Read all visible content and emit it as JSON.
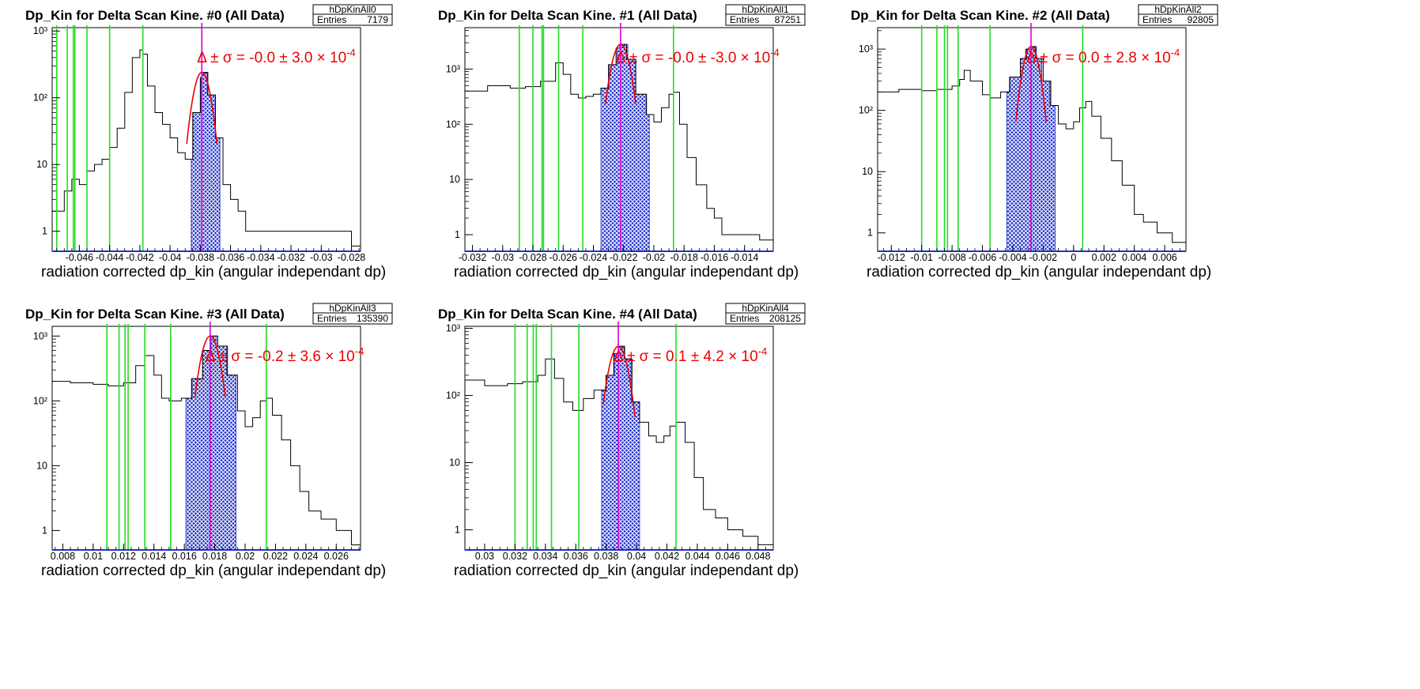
{
  "chart_data": [
    {
      "type": "line",
      "title": "Dp_Kin for Delta Scan Kine. #0 (All Data)",
      "xlabel": "radiation corrected dp_kin (angular independant dp)",
      "ylabel": "",
      "xlim": [
        -0.0478,
        -0.0274
      ],
      "ylog": true,
      "ylim_decades": [
        -0.3,
        3.05
      ],
      "xticks": [
        "-0.046",
        "-0.044",
        "-0.042",
        "-0.04",
        "-0.038",
        "-0.036",
        "-0.034",
        "-0.032",
        "-0.03",
        "-0.028"
      ],
      "yticks": [
        "1",
        "10",
        "10²",
        "10³"
      ],
      "stats": {
        "name": "hDpKinAll0",
        "entries_label": "Entries",
        "entries": "7179"
      },
      "annotation": {
        "lhs": "Δ ± σ = ",
        "value": "-0.0 ± 3.0 × 10",
        "exp": "-4"
      },
      "peak_x": -0.0379,
      "sigma": 0.00045,
      "fit_range": [
        -0.0389,
        -0.0369
      ],
      "fill_range": [
        -0.0386,
        -0.0367
      ],
      "green_lines": [
        -0.0475,
        -0.0468,
        -0.0464,
        -0.0463,
        -0.0455,
        -0.044,
        -0.0418
      ],
      "histogram": {
        "x": [
          -0.0478,
          -0.047,
          -0.0465,
          -0.046,
          -0.0455,
          -0.045,
          -0.0445,
          -0.044,
          -0.0435,
          -0.043,
          -0.0425,
          -0.042,
          -0.0418,
          -0.0415,
          -0.041,
          -0.0405,
          -0.04,
          -0.0395,
          -0.039,
          -0.0385,
          -0.038,
          -0.0379,
          -0.0375,
          -0.037,
          -0.0365,
          -0.036,
          -0.0355,
          -0.035,
          -0.034,
          -0.033,
          -0.032,
          -0.031,
          -0.03,
          -0.029,
          -0.028,
          -0.0274
        ],
        "y": [
          2,
          4,
          6,
          5,
          8,
          10,
          12,
          18,
          35,
          120,
          400,
          520,
          450,
          150,
          60,
          40,
          25,
          15,
          12,
          60,
          200,
          240,
          110,
          25,
          5,
          3,
          2,
          1,
          1,
          1,
          1,
          1,
          1,
          1,
          0.6,
          0.5
        ]
      }
    },
    {
      "type": "line",
      "title": "Dp_Kin for Delta Scan Kine. #1 (All Data)",
      "xlabel": "radiation corrected dp_kin (angular independant dp)",
      "ylabel": "",
      "xlim": [
        -0.0325,
        -0.0121
      ],
      "ylog": true,
      "ylim_decades": [
        -0.3,
        3.75
      ],
      "xticks": [
        "-0.032",
        "-0.03",
        "-0.028",
        "-0.026",
        "-0.024",
        "-0.022",
        "-0.02",
        "-0.018",
        "-0.016",
        "-0.014"
      ],
      "yticks": [
        "1",
        "10",
        "10²",
        "10³"
      ],
      "stats": {
        "name": "hDpKinAll1",
        "entries_label": "Entries",
        "entries": "87251"
      },
      "annotation": {
        "lhs": "Δ ± σ = ",
        "value": "-0.0 ± -3.0 × 10",
        "exp": "-4"
      },
      "peak_x": -0.0222,
      "sigma": 0.00045,
      "fit_range": [
        -0.0232,
        -0.0212
      ],
      "fill_range": [
        -0.0235,
        -0.0203
      ],
      "green_lines": [
        -0.0289,
        -0.028,
        -0.0274,
        -0.0273,
        -0.0263,
        -0.0247,
        -0.0187
      ],
      "histogram": {
        "x": [
          -0.0325,
          -0.031,
          -0.0295,
          -0.0285,
          -0.0275,
          -0.0265,
          -0.026,
          -0.0255,
          -0.025,
          -0.0245,
          -0.024,
          -0.0235,
          -0.023,
          -0.0225,
          -0.0222,
          -0.0218,
          -0.0212,
          -0.0205,
          -0.02,
          -0.0195,
          -0.019,
          -0.0187,
          -0.0183,
          -0.0178,
          -0.0172,
          -0.0165,
          -0.016,
          -0.0155,
          -0.015,
          -0.014,
          -0.013,
          -0.0121
        ],
        "y": [
          400,
          500,
          450,
          480,
          600,
          1300,
          800,
          350,
          300,
          320,
          350,
          450,
          1200,
          2400,
          2800,
          1500,
          350,
          150,
          110,
          200,
          350,
          380,
          100,
          25,
          8,
          3,
          2,
          1,
          1,
          1,
          0.8,
          0.6
        ]
      }
    },
    {
      "type": "line",
      "title": "Dp_Kin for Delta Scan Kine. #2 (All Data)",
      "xlabel": "radiation corrected dp_kin (angular independant dp)",
      "ylabel": "",
      "xlim": [
        -0.0129,
        0.0074
      ],
      "ylog": true,
      "ylim_decades": [
        -0.3,
        3.35
      ],
      "xticks": [
        "-0.012",
        "-0.01",
        "-0.008",
        "-0.006",
        "-0.004",
        "-0.002",
        "0",
        "0.002",
        "0.004",
        "0.006"
      ],
      "yticks": [
        "1",
        "10",
        "10²",
        "10³"
      ],
      "stats": {
        "name": "hDpKinAll2",
        "entries_label": "Entries",
        "entries": "92805"
      },
      "annotation": {
        "lhs": "Δ ± σ = ",
        "value": "0.0 ± 2.8 × 10",
        "exp": "-4"
      },
      "peak_x": -0.0028,
      "sigma": 0.00042,
      "fit_range": [
        -0.0038,
        -0.0018
      ],
      "fill_range": [
        -0.0044,
        -0.0012
      ],
      "green_lines": [
        -0.01,
        -0.009,
        -0.0085,
        -0.0083,
        -0.0076,
        -0.0055,
        0.0006
      ],
      "histogram": {
        "x": [
          -0.0129,
          -0.0115,
          -0.01,
          -0.009,
          -0.008,
          -0.0075,
          -0.0072,
          -0.0068,
          -0.006,
          -0.0055,
          -0.0048,
          -0.0042,
          -0.0035,
          -0.0031,
          -0.0028,
          -0.0025,
          -0.002,
          -0.0015,
          -0.001,
          -0.0005,
          0.0,
          0.0004,
          0.0008,
          0.0012,
          0.0018,
          0.0025,
          0.0032,
          0.004,
          0.0046,
          0.0055,
          0.0065,
          0.0074
        ],
        "y": [
          200,
          220,
          210,
          220,
          250,
          320,
          450,
          300,
          180,
          160,
          200,
          350,
          700,
          1000,
          1100,
          700,
          300,
          120,
          60,
          50,
          65,
          110,
          140,
          80,
          35,
          15,
          6,
          2,
          1.5,
          1,
          0.7,
          0.5
        ]
      }
    },
    {
      "type": "line",
      "title": "Dp_Kin for Delta Scan Kine. #3 (All Data)",
      "xlabel": "radiation corrected dp_kin (angular independant dp)",
      "ylabel": "",
      "xlim": [
        0.0073,
        0.0276
      ],
      "ylog": true,
      "ylim_decades": [
        -0.3,
        3.15
      ],
      "xticks": [
        "0.008",
        "0.01",
        "0.012",
        "0.014",
        "0.016",
        "0.018",
        "0.02",
        "0.022",
        "0.024",
        "0.026"
      ],
      "yticks": [
        "1",
        "10",
        "10²",
        "10³"
      ],
      "stats": {
        "name": "hDpKinAll3",
        "entries_label": "Entries",
        "entries": "135390"
      },
      "annotation": {
        "lhs": "Δ ± σ = ",
        "value": "-0.2 ± 3.6 × 10",
        "exp": "-4"
      },
      "peak_x": 0.0177,
      "sigma": 0.00048,
      "fit_range": [
        0.0167,
        0.0187
      ],
      "fill_range": [
        0.0161,
        0.0194
      ],
      "green_lines": [
        0.0109,
        0.0117,
        0.0121,
        0.0123,
        0.0134,
        0.0151,
        0.0214
      ],
      "histogram": {
        "x": [
          0.0073,
          0.0085,
          0.01,
          0.011,
          0.012,
          0.0128,
          0.0134,
          0.014,
          0.0145,
          0.015,
          0.0158,
          0.0165,
          0.0172,
          0.0177,
          0.0182,
          0.0188,
          0.0195,
          0.02,
          0.0205,
          0.021,
          0.0214,
          0.0218,
          0.0224,
          0.023,
          0.0236,
          0.0242,
          0.025,
          0.026,
          0.027,
          0.0276
        ],
        "y": [
          200,
          190,
          180,
          170,
          190,
          350,
          500,
          250,
          110,
          100,
          110,
          220,
          600,
          1000,
          700,
          250,
          70,
          40,
          55,
          100,
          110,
          60,
          25,
          10,
          4,
          2,
          1.5,
          1,
          0.6,
          0.5
        ]
      }
    },
    {
      "type": "line",
      "title": "Dp_Kin for Delta Scan Kine. #4 (All Data)",
      "xlabel": "radiation corrected dp_kin (angular independant dp)",
      "ylabel": "",
      "xlim": [
        0.0287,
        0.049
      ],
      "ylog": true,
      "ylim_decades": [
        -0.3,
        3.03
      ],
      "xticks": [
        "0.03",
        "0.032",
        "0.034",
        "0.036",
        "0.038",
        "0.04",
        "0.042",
        "0.044",
        "0.046",
        "0.048"
      ],
      "yticks": [
        "1",
        "10",
        "10²",
        "10³"
      ],
      "stats": {
        "name": "hDpKinAll4",
        "entries_label": "Entries",
        "entries": "208125"
      },
      "annotation": {
        "lhs": "Δ ± σ = ",
        "value": "0.1 ± 4.2 × 10",
        "exp": "-4"
      },
      "peak_x": 0.0388,
      "sigma": 0.0005,
      "fit_range": [
        0.0378,
        0.0399
      ],
      "fill_range": [
        0.0377,
        0.0402
      ],
      "green_lines": [
        0.032,
        0.0328,
        0.0332,
        0.0334,
        0.0344,
        0.0362,
        0.0426
      ],
      "histogram": {
        "x": [
          0.0287,
          0.03,
          0.0315,
          0.0325,
          0.0335,
          0.034,
          0.0346,
          0.0352,
          0.0358,
          0.0365,
          0.0372,
          0.038,
          0.0385,
          0.0388,
          0.0392,
          0.0397,
          0.0402,
          0.0408,
          0.0413,
          0.0418,
          0.0422,
          0.0426,
          0.0432,
          0.0438,
          0.0444,
          0.0452,
          0.046,
          0.047,
          0.048,
          0.049
        ],
        "y": [
          170,
          140,
          150,
          160,
          200,
          350,
          180,
          80,
          60,
          90,
          120,
          200,
          420,
          540,
          350,
          80,
          40,
          25,
          20,
          25,
          35,
          40,
          20,
          6,
          2,
          1.5,
          1,
          0.8,
          0.6,
          0.5
        ]
      }
    }
  ]
}
